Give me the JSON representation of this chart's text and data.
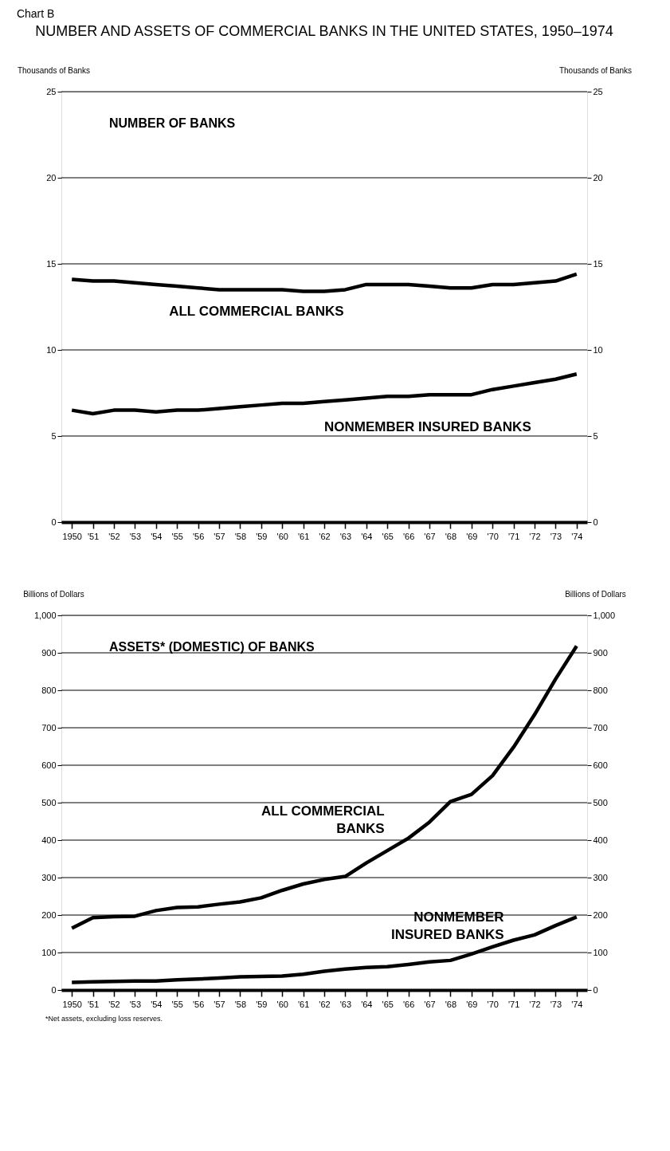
{
  "chart_data": [
    {
      "type": "line",
      "subtitle": "Chart B",
      "title": "NUMBER AND ASSETS OF COMMERCIAL BANKS IN THE UNITED STATES, 1950–1974",
      "ylabel": "Thousands of Banks",
      "y2label": "Thousands of Banks",
      "annotations": [
        "NUMBER OF BANKS"
      ],
      "categories": [
        "1950",
        "'51",
        "'52",
        "'53",
        "'54",
        "'55",
        "'56",
        "'57",
        "'58",
        "'59",
        "'60",
        "'61",
        "'62",
        "'63",
        "'64",
        "'65",
        "'66",
        "'67",
        "'68",
        "'69",
        "'70",
        "'71",
        "'72",
        "'73",
        "'74"
      ],
      "series": [
        {
          "name": "ALL COMMERCIAL BANKS",
          "color": "#000000",
          "values": [
            14.1,
            14.0,
            14.0,
            13.9,
            13.8,
            13.7,
            13.6,
            13.5,
            13.5,
            13.5,
            13.5,
            13.4,
            13.4,
            13.5,
            13.8,
            13.8,
            13.8,
            13.7,
            13.6,
            13.6,
            13.8,
            13.8,
            13.9,
            14.0,
            14.4
          ]
        },
        {
          "name": "NONMEMBER INSURED BANKS",
          "color": "#000000",
          "values": [
            6.5,
            6.3,
            6.5,
            6.5,
            6.4,
            6.5,
            6.5,
            6.6,
            6.7,
            6.8,
            6.9,
            6.9,
            7.0,
            7.1,
            7.2,
            7.3,
            7.3,
            7.4,
            7.4,
            7.4,
            7.7,
            7.9,
            8.1,
            8.3,
            8.6
          ]
        }
      ],
      "ylim": [
        0,
        25
      ],
      "yticks": [
        0,
        5,
        10,
        15,
        20,
        25
      ],
      "y2lim": [
        0,
        25
      ],
      "y2ticks": [
        0,
        5,
        10,
        15,
        20,
        25
      ],
      "grid": "y",
      "legend": false,
      "line_style": "solid",
      "marker": "none"
    },
    {
      "type": "line",
      "ylabel": "Billions of Dollars",
      "y2label": "Billions of Dollars",
      "annotations": [
        "ASSETS* (DOMESTIC) OF BANKS",
        "*Net assets, excluding loss reserves."
      ],
      "categories": [
        "1950",
        "'51",
        "'52",
        "'53",
        "'54",
        "'55",
        "'56",
        "'57",
        "'58",
        "'59",
        "'60",
        "'61",
        "'62",
        "'63",
        "'64",
        "'65",
        "'66",
        "'67",
        "'68",
        "'69",
        "'70",
        "'71",
        "'72",
        "'73",
        "'74"
      ],
      "series": [
        {
          "name": "ALL COMMERCIAL BANKS",
          "color": "#000000",
          "values": [
            165,
            193,
            196,
            197,
            212,
            220,
            222,
            229,
            235,
            246,
            266,
            283,
            295,
            303,
            339,
            372,
            405,
            448,
            503,
            522,
            572,
            648,
            735,
            830,
            918
          ]
        },
        {
          "name": "NONMEMBER INSURED BANKS",
          "color": "#000000",
          "values": [
            20,
            22,
            23,
            24,
            24,
            27,
            29,
            32,
            35,
            36,
            37,
            42,
            50,
            56,
            60,
            62,
            68,
            75,
            79,
            96,
            115,
            133,
            147,
            172,
            195
          ]
        }
      ],
      "ylim": [
        0,
        1000
      ],
      "yticks": [
        0,
        100,
        200,
        300,
        400,
        500,
        600,
        700,
        800,
        900,
        {
          "value": 1000,
          "label": "1,000"
        }
      ],
      "y2lim": [
        0,
        1000
      ],
      "y2ticks": [
        0,
        100,
        200,
        300,
        400,
        500,
        600,
        700,
        800,
        900,
        {
          "value": 1000,
          "label": "1,000"
        }
      ],
      "grid": "y",
      "legend": false,
      "line_style": "solid",
      "marker": "none"
    }
  ]
}
